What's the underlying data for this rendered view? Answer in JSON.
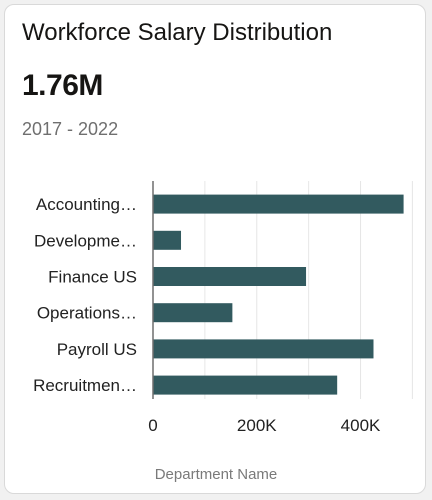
{
  "card": {
    "title": "Workforce Salary Distribution",
    "metric": "1.76M",
    "range": "2017 - 2022"
  },
  "chart_data": {
    "type": "bar",
    "orientation": "horizontal",
    "categories": [
      "Accounting…",
      "Developme…",
      "Finance US",
      "Operations…",
      "Payroll US",
      "Recruitmen…"
    ],
    "values": [
      483000,
      54000,
      295000,
      153000,
      425000,
      355000
    ],
    "xlabel": "Department Name",
    "xlim": [
      0,
      505000
    ],
    "xticks": [
      0,
      200000,
      400000
    ],
    "xtick_labels": [
      "0",
      "200K",
      "400K"
    ],
    "grid": true,
    "bar_color": "#325a5f"
  }
}
